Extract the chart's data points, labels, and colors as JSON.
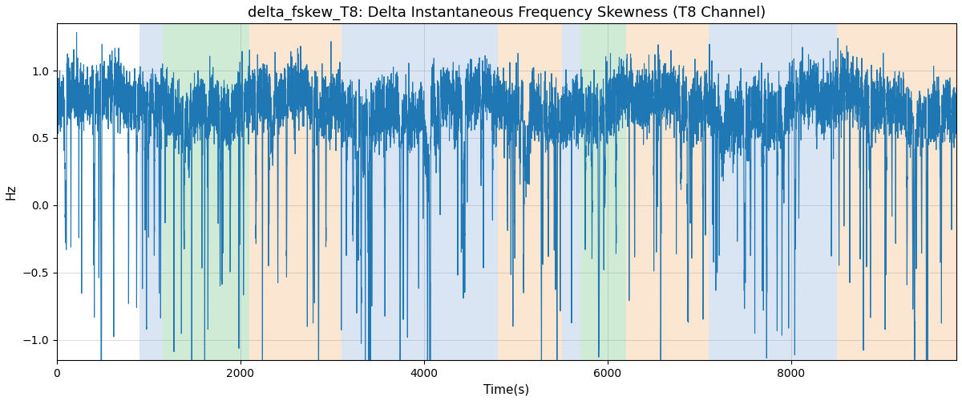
{
  "title": "delta_fskew_T8: Delta Instantaneous Frequency Skewness (T8 Channel)",
  "xlabel": "Time(s)",
  "ylabel": "Hz",
  "ylim": [
    -1.15,
    1.35
  ],
  "xlim": [
    0,
    9800
  ],
  "line_color": "#1f77b4",
  "background_color": "#ffffff",
  "grid": true,
  "bands": [
    {
      "xmin": 900,
      "xmax": 1150,
      "color": "#aec6e8",
      "alpha": 0.45
    },
    {
      "xmin": 1150,
      "xmax": 2100,
      "color": "#98d4a3",
      "alpha": 0.45
    },
    {
      "xmin": 2100,
      "xmax": 3100,
      "color": "#f7c89b",
      "alpha": 0.45
    },
    {
      "xmin": 3100,
      "xmax": 4800,
      "color": "#aec6e8",
      "alpha": 0.45
    },
    {
      "xmin": 4800,
      "xmax": 5500,
      "color": "#f7c89b",
      "alpha": 0.45
    },
    {
      "xmin": 5500,
      "xmax": 5700,
      "color": "#aec6e8",
      "alpha": 0.45
    },
    {
      "xmin": 5700,
      "xmax": 6200,
      "color": "#98d4a3",
      "alpha": 0.45
    },
    {
      "xmin": 6200,
      "xmax": 7100,
      "color": "#f7c89b",
      "alpha": 0.45
    },
    {
      "xmin": 7100,
      "xmax": 8500,
      "color": "#aec6e8",
      "alpha": 0.45
    },
    {
      "xmin": 8500,
      "xmax": 9800,
      "color": "#f7c89b",
      "alpha": 0.45
    }
  ],
  "seed": 42,
  "n_points": 9500,
  "title_fontsize": 13,
  "label_fontsize": 11,
  "linewidth": 0.8
}
